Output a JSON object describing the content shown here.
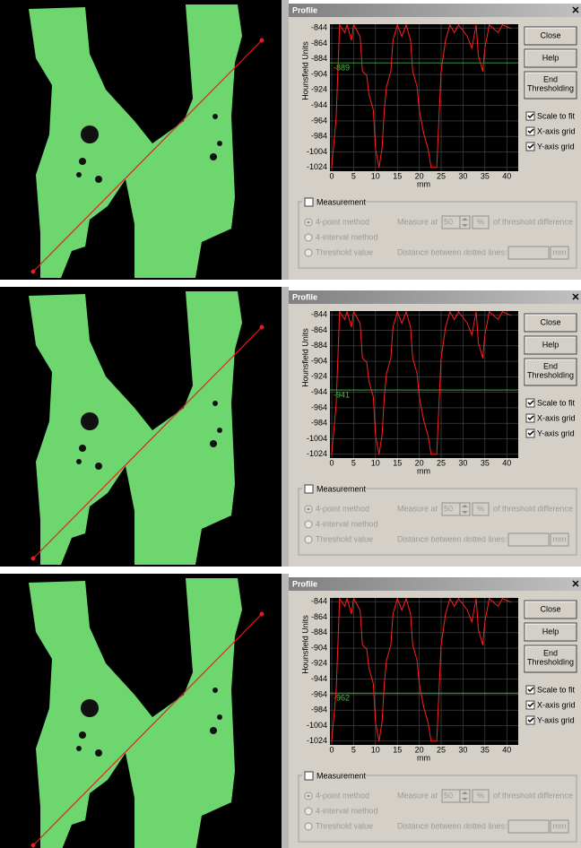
{
  "panels": [
    {
      "title": "Profile",
      "chart": {
        "type": "line",
        "ylabel": "Hounsfield Units",
        "xlabel": "mm",
        "xlim": [
          0,
          42
        ],
        "ylim": [
          -1030,
          -838
        ],
        "xticks": [
          0,
          5,
          10,
          15,
          20,
          25,
          30,
          35,
          40
        ],
        "yticks": [
          -844,
          -864,
          -884,
          -904,
          -924,
          -944,
          -964,
          -984,
          -1004,
          -1024
        ],
        "grid": true,
        "threshold": -889,
        "color": "#ff2020",
        "threshold_color": "#3ec83e",
        "x": [
          0,
          1,
          1.8,
          3,
          3.5,
          4.5,
          5,
          6.5,
          7,
          8,
          8.5,
          9.5,
          10,
          10.8,
          11.5,
          12,
          12.5,
          13.5,
          14,
          15,
          16,
          17,
          18,
          18.5,
          19.5,
          20,
          21,
          22,
          22.7,
          24,
          24.5,
          25,
          26,
          27,
          28,
          29,
          31,
          32,
          33,
          33.5,
          34.5,
          35,
          36,
          38,
          39,
          41
        ],
        "values": [
          -1024,
          -960,
          -840,
          -850,
          -840,
          -860,
          -840,
          -855,
          -900,
          -905,
          -930,
          -950,
          -1000,
          -1024,
          -1000,
          -950,
          -920,
          -900,
          -860,
          -840,
          -855,
          -840,
          -860,
          -900,
          -920,
          -950,
          -980,
          -1000,
          -1024,
          -1024,
          -960,
          -900,
          -860,
          -840,
          -850,
          -840,
          -855,
          -870,
          -840,
          -880,
          -900,
          -870,
          -840,
          -850,
          -840,
          -845
        ]
      },
      "buttons": [
        "Close",
        "Help"
      ],
      "end_button": [
        "End",
        "Thresholding"
      ],
      "checkboxes": [
        "Scale to fit",
        "X-axis grid",
        "Y-axis grid"
      ],
      "measurement": {
        "label": "Measurement",
        "methods": [
          "4-point method",
          "4-interval method",
          "Threshold value"
        ],
        "measure_at": "Measure at",
        "percent_value": 50,
        "percent_unit": "%",
        "threshold_text": "of threshold difference",
        "distance_label": "Distance between dotted lines:",
        "distance_unit": "mm"
      }
    },
    {
      "title": "Profile",
      "chart": {
        "type": "line",
        "ylabel": "Hounsfield Units",
        "xlabel": "mm",
        "xlim": [
          0,
          42
        ],
        "ylim": [
          -1030,
          -838
        ],
        "xticks": [
          0,
          5,
          10,
          15,
          20,
          25,
          30,
          35,
          40
        ],
        "yticks": [
          -844,
          -864,
          -884,
          -904,
          -924,
          -944,
          -964,
          -984,
          -1004,
          -1024
        ],
        "grid": true,
        "threshold": -941,
        "color": "#ff2020",
        "threshold_color": "#3ec83e",
        "x": [
          0,
          1,
          1.8,
          3,
          3.5,
          4.5,
          5,
          6.5,
          7,
          8,
          8.5,
          9.5,
          10,
          10.8,
          11.5,
          12,
          12.5,
          13.5,
          14,
          15,
          16,
          17,
          18,
          18.5,
          19.5,
          20,
          21,
          22,
          22.7,
          24,
          24.5,
          25,
          26,
          27,
          28,
          29,
          31,
          32,
          33,
          33.5,
          34.5,
          35,
          36,
          38,
          39,
          41
        ],
        "values": [
          -1024,
          -960,
          -840,
          -850,
          -840,
          -860,
          -840,
          -855,
          -900,
          -905,
          -930,
          -950,
          -1000,
          -1024,
          -1000,
          -950,
          -920,
          -900,
          -860,
          -840,
          -855,
          -840,
          -860,
          -900,
          -920,
          -950,
          -980,
          -1000,
          -1024,
          -1024,
          -960,
          -900,
          -860,
          -840,
          -850,
          -840,
          -855,
          -870,
          -840,
          -880,
          -900,
          -870,
          -840,
          -850,
          -840,
          -845
        ]
      },
      "buttons": [
        "Close",
        "Help"
      ],
      "end_button": [
        "End",
        "Thresholding"
      ],
      "checkboxes": [
        "Scale to fit",
        "X-axis grid",
        "Y-axis grid"
      ],
      "measurement": {
        "label": "Measurement",
        "methods": [
          "4-point method",
          "4-interval method",
          "Threshold value"
        ],
        "measure_at": "Measure at",
        "percent_value": 50,
        "percent_unit": "%",
        "threshold_text": "of threshold difference",
        "distance_label": "Distance between dotted lines:",
        "distance_unit": "mm"
      }
    },
    {
      "title": "Profile",
      "chart": {
        "type": "line",
        "ylabel": "Hounsfield Units",
        "xlabel": "mm",
        "xlim": [
          0,
          42
        ],
        "ylim": [
          -1030,
          -838
        ],
        "xticks": [
          0,
          5,
          10,
          15,
          20,
          25,
          30,
          35,
          40
        ],
        "yticks": [
          -844,
          -864,
          -884,
          -904,
          -924,
          -944,
          -964,
          -984,
          -1004,
          -1024
        ],
        "grid": true,
        "threshold": -962,
        "color": "#ff2020",
        "threshold_color": "#3ec83e",
        "x": [
          0,
          1,
          1.8,
          3,
          3.5,
          4.5,
          5,
          6.5,
          7,
          8,
          8.5,
          9.5,
          10,
          10.8,
          11.5,
          12,
          12.5,
          13.5,
          14,
          15,
          16,
          17,
          18,
          18.5,
          19.5,
          20,
          21,
          22,
          22.7,
          24,
          24.5,
          25,
          26,
          27,
          28,
          29,
          31,
          32,
          33,
          33.5,
          34.5,
          35,
          36,
          38,
          39,
          41
        ],
        "values": [
          -1024,
          -960,
          -840,
          -850,
          -840,
          -860,
          -840,
          -855,
          -900,
          -905,
          -930,
          -950,
          -1000,
          -1024,
          -1000,
          -950,
          -920,
          -900,
          -860,
          -840,
          -855,
          -840,
          -860,
          -900,
          -920,
          -950,
          -980,
          -1000,
          -1024,
          -1024,
          -960,
          -900,
          -860,
          -840,
          -850,
          -840,
          -855,
          -870,
          -840,
          -880,
          -900,
          -870,
          -840,
          -850,
          -840,
          -845
        ]
      },
      "buttons": [
        "Close",
        "Help"
      ],
      "end_button": [
        "End",
        "Thresholding"
      ],
      "checkboxes": [
        "Scale to fit",
        "X-axis grid",
        "Y-axis grid"
      ],
      "measurement": {
        "label": "Measurement",
        "methods": [
          "4-point method",
          "4-interval method",
          "Threshold value"
        ],
        "measure_at": "Measure at",
        "percent_value": 50,
        "percent_unit": "%",
        "threshold_text": "of threshold difference",
        "distance_label": "Distance between dotted lines:",
        "distance_unit": "mm"
      }
    }
  ]
}
